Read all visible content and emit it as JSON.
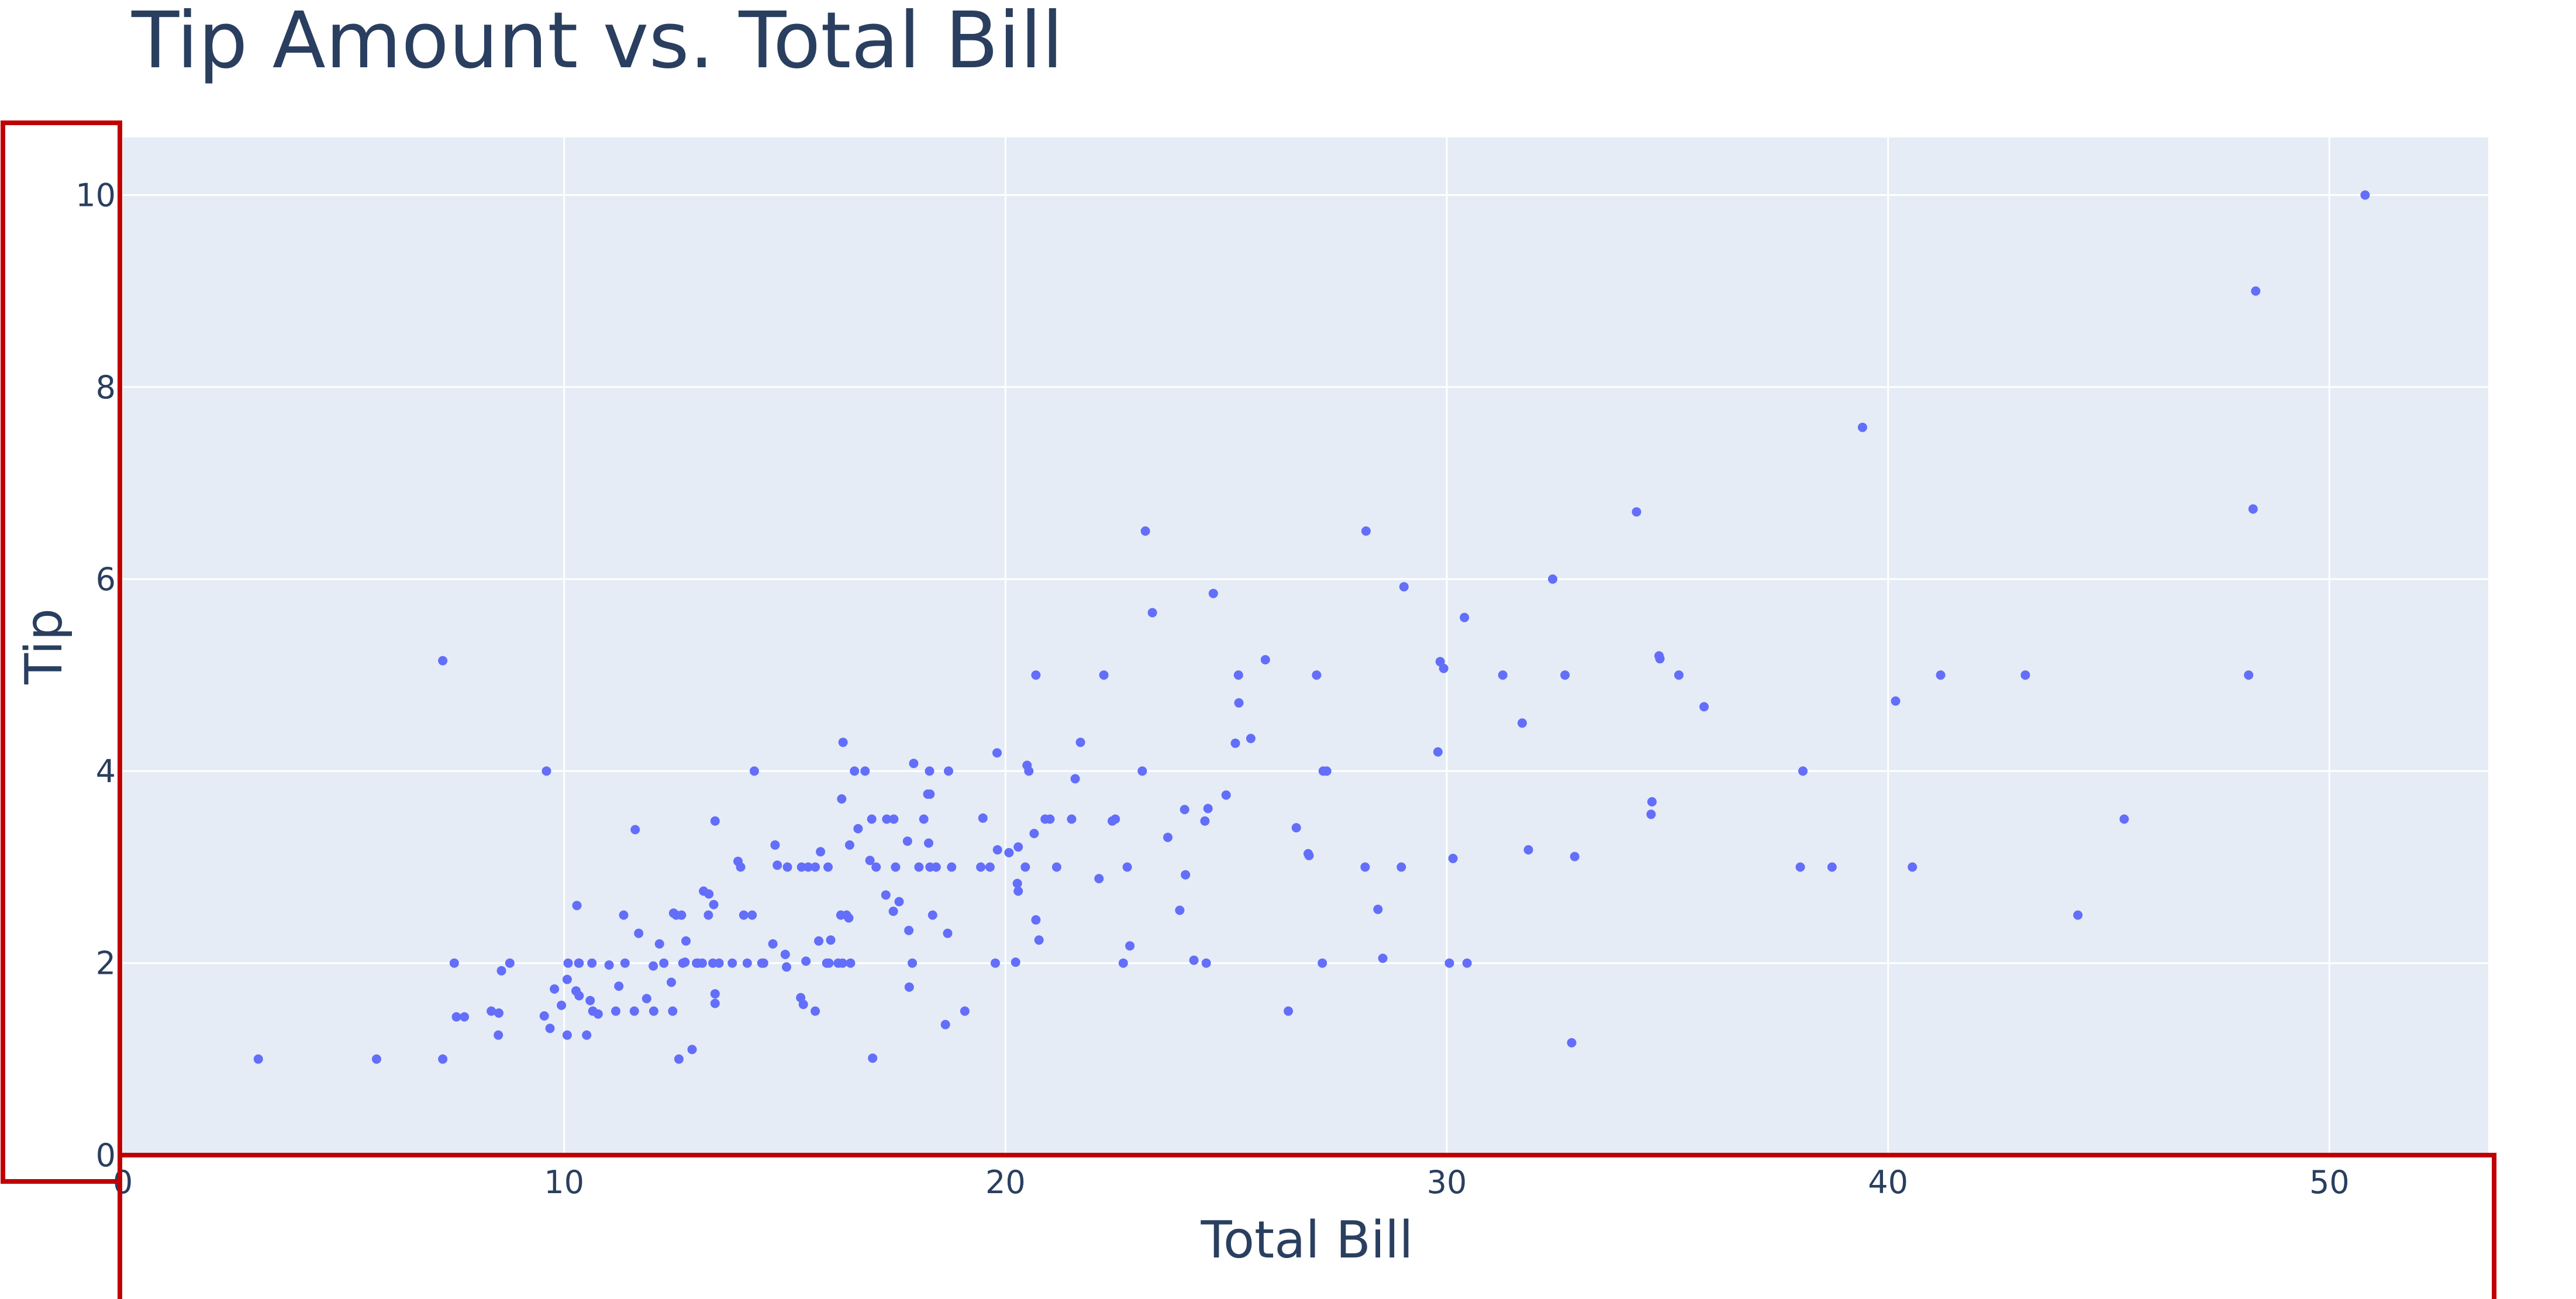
{
  "chart_data": {
    "type": "scatter",
    "title": "Tip Amount vs. Total Bill",
    "xlabel": "Total Bill",
    "ylabel": "Tip",
    "xlim": [
      0,
      53.6
    ],
    "ylim": [
      0,
      10.6
    ],
    "xticks": [
      0,
      10,
      20,
      30,
      40,
      50
    ],
    "yticks": [
      0,
      2,
      4,
      6,
      8,
      10
    ],
    "grid": true,
    "background": "#e5ecf6",
    "marker_color": "#636efa",
    "highlight_color": "#c00000",
    "points": [
      [
        3.07,
        1.0
      ],
      [
        5.75,
        1.0
      ],
      [
        7.25,
        1.0
      ],
      [
        7.25,
        5.15
      ],
      [
        7.51,
        2.0
      ],
      [
        7.56,
        1.44
      ],
      [
        7.74,
        1.44
      ],
      [
        8.35,
        1.5
      ],
      [
        8.51,
        1.25
      ],
      [
        8.52,
        1.48
      ],
      [
        8.58,
        1.92
      ],
      [
        8.77,
        2.0
      ],
      [
        9.55,
        1.45
      ],
      [
        9.6,
        4.0
      ],
      [
        9.68,
        1.32
      ],
      [
        9.78,
        1.73
      ],
      [
        9.94,
        1.56
      ],
      [
        10.07,
        1.83
      ],
      [
        10.07,
        1.25
      ],
      [
        10.09,
        2.0
      ],
      [
        10.27,
        1.71
      ],
      [
        10.29,
        2.6
      ],
      [
        10.33,
        2.0
      ],
      [
        10.34,
        1.66
      ],
      [
        10.34,
        2.0
      ],
      [
        10.51,
        1.25
      ],
      [
        10.59,
        1.61
      ],
      [
        10.63,
        2.0
      ],
      [
        10.65,
        1.5
      ],
      [
        10.77,
        1.47
      ],
      [
        11.02,
        1.98
      ],
      [
        11.17,
        1.5
      ],
      [
        11.24,
        1.76
      ],
      [
        11.35,
        2.5
      ],
      [
        11.38,
        2.0
      ],
      [
        11.59,
        1.5
      ],
      [
        11.61,
        3.39
      ],
      [
        11.69,
        2.31
      ],
      [
        11.87,
        1.63
      ],
      [
        12.02,
        1.97
      ],
      [
        12.03,
        1.5
      ],
      [
        12.16,
        2.2
      ],
      [
        12.26,
        2.0
      ],
      [
        12.43,
        1.8
      ],
      [
        12.46,
        1.5
      ],
      [
        12.48,
        2.52
      ],
      [
        12.54,
        2.5
      ],
      [
        12.6,
        1.0
      ],
      [
        12.66,
        2.5
      ],
      [
        12.69,
        2.0
      ],
      [
        12.74,
        2.01
      ],
      [
        12.76,
        2.23
      ],
      [
        12.9,
        1.1
      ],
      [
        13.0,
        2.0
      ],
      [
        13.03,
        2.0
      ],
      [
        13.13,
        2.0
      ],
      [
        13.16,
        2.75
      ],
      [
        13.27,
        2.5
      ],
      [
        13.28,
        2.72
      ],
      [
        13.37,
        2.0
      ],
      [
        13.39,
        2.61
      ],
      [
        13.42,
        3.48
      ],
      [
        13.42,
        1.58
      ],
      [
        13.42,
        1.68
      ],
      [
        13.51,
        2.0
      ],
      [
        13.81,
        2.0
      ],
      [
        13.94,
        3.06
      ],
      [
        14.0,
        3.0
      ],
      [
        14.07,
        2.5
      ],
      [
        14.15,
        2.0
      ],
      [
        14.26,
        2.5
      ],
      [
        14.31,
        4.0
      ],
      [
        14.48,
        2.0
      ],
      [
        14.52,
        2.0
      ],
      [
        14.73,
        2.2
      ],
      [
        14.78,
        3.23
      ],
      [
        14.83,
        3.02
      ],
      [
        15.01,
        2.09
      ],
      [
        15.04,
        1.96
      ],
      [
        15.06,
        3.0
      ],
      [
        15.36,
        1.64
      ],
      [
        15.38,
        3.0
      ],
      [
        15.42,
        1.57
      ],
      [
        15.48,
        2.02
      ],
      [
        15.53,
        3.0
      ],
      [
        15.69,
        3.0
      ],
      [
        15.69,
        1.5
      ],
      [
        15.77,
        2.23
      ],
      [
        15.81,
        3.16
      ],
      [
        15.95,
        2.0
      ],
      [
        15.98,
        3.0
      ],
      [
        16.0,
        2.0
      ],
      [
        16.04,
        2.24
      ],
      [
        16.21,
        2.0
      ],
      [
        16.27,
        2.5
      ],
      [
        16.29,
        3.71
      ],
      [
        16.31,
        2.0
      ],
      [
        16.32,
        4.3
      ],
      [
        16.4,
        2.5
      ],
      [
        16.45,
        2.47
      ],
      [
        16.47,
        3.23
      ],
      [
        16.49,
        2.0
      ],
      [
        16.58,
        4.0
      ],
      [
        16.66,
        3.4
      ],
      [
        16.82,
        4.0
      ],
      [
        16.93,
        3.07
      ],
      [
        16.97,
        3.5
      ],
      [
        16.99,
        1.01
      ],
      [
        17.07,
        3.0
      ],
      [
        17.29,
        2.71
      ],
      [
        17.31,
        3.5
      ],
      [
        17.46,
        2.54
      ],
      [
        17.47,
        3.5
      ],
      [
        17.51,
        3.0
      ],
      [
        17.59,
        2.64
      ],
      [
        17.78,
        3.27
      ],
      [
        17.81,
        2.34
      ],
      [
        17.82,
        1.75
      ],
      [
        17.89,
        2.0
      ],
      [
        17.92,
        4.08
      ],
      [
        18.04,
        3.0
      ],
      [
        18.15,
        3.5
      ],
      [
        18.24,
        3.76
      ],
      [
        18.26,
        3.25
      ],
      [
        18.28,
        4.0
      ],
      [
        18.29,
        3.76
      ],
      [
        18.29,
        3.0
      ],
      [
        18.35,
        2.5
      ],
      [
        18.43,
        3.0
      ],
      [
        18.64,
        1.36
      ],
      [
        18.69,
        2.31
      ],
      [
        18.71,
        4.0
      ],
      [
        18.78,
        3.0
      ],
      [
        19.08,
        1.5
      ],
      [
        19.44,
        3.0
      ],
      [
        19.49,
        3.51
      ],
      [
        19.65,
        3.0
      ],
      [
        19.77,
        2.0
      ],
      [
        19.81,
        4.19
      ],
      [
        19.82,
        3.18
      ],
      [
        20.08,
        3.15
      ],
      [
        20.23,
        2.01
      ],
      [
        20.27,
        2.83
      ],
      [
        20.29,
        2.75
      ],
      [
        20.29,
        3.21
      ],
      [
        20.45,
        3.0
      ],
      [
        20.49,
        4.06
      ],
      [
        20.53,
        4.0
      ],
      [
        20.65,
        3.35
      ],
      [
        20.69,
        2.45
      ],
      [
        20.69,
        5.0
      ],
      [
        20.76,
        2.24
      ],
      [
        20.9,
        3.5
      ],
      [
        21.01,
        3.5
      ],
      [
        21.16,
        3.0
      ],
      [
        21.5,
        3.5
      ],
      [
        21.58,
        3.92
      ],
      [
        21.7,
        4.3
      ],
      [
        22.12,
        2.88
      ],
      [
        22.23,
        5.0
      ],
      [
        22.42,
        3.48
      ],
      [
        22.49,
        3.5
      ],
      [
        22.67,
        2.0
      ],
      [
        22.76,
        3.0
      ],
      [
        22.82,
        2.18
      ],
      [
        23.1,
        4.0
      ],
      [
        23.17,
        6.5
      ],
      [
        23.33,
        5.65
      ],
      [
        23.68,
        3.31
      ],
      [
        23.95,
        2.55
      ],
      [
        24.06,
        3.6
      ],
      [
        24.08,
        2.92
      ],
      [
        24.27,
        2.03
      ],
      [
        24.52,
        3.48
      ],
      [
        24.55,
        2.0
      ],
      [
        24.59,
        3.61
      ],
      [
        24.71,
        5.85
      ],
      [
        25.0,
        3.75
      ],
      [
        25.21,
        4.29
      ],
      [
        25.28,
        5.0
      ],
      [
        25.29,
        4.71
      ],
      [
        25.56,
        4.34
      ],
      [
        25.89,
        5.16
      ],
      [
        26.41,
        1.5
      ],
      [
        26.59,
        3.41
      ],
      [
        26.86,
        3.14
      ],
      [
        26.88,
        3.12
      ],
      [
        27.05,
        5.0
      ],
      [
        27.18,
        2.0
      ],
      [
        27.2,
        4.0
      ],
      [
        27.28,
        4.0
      ],
      [
        28.15,
        3.0
      ],
      [
        28.17,
        6.5
      ],
      [
        28.44,
        2.56
      ],
      [
        28.55,
        2.05
      ],
      [
        28.97,
        3.0
      ],
      [
        29.03,
        5.92
      ],
      [
        29.8,
        4.2
      ],
      [
        29.85,
        5.14
      ],
      [
        29.93,
        5.07
      ],
      [
        30.06,
        2.0
      ],
      [
        30.14,
        3.09
      ],
      [
        30.4,
        5.6
      ],
      [
        30.46,
        2.0
      ],
      [
        31.27,
        5.0
      ],
      [
        31.71,
        4.5
      ],
      [
        31.85,
        3.18
      ],
      [
        32.4,
        6.0
      ],
      [
        32.68,
        5.0
      ],
      [
        32.83,
        1.17
      ],
      [
        32.9,
        3.11
      ],
      [
        34.3,
        6.7
      ],
      [
        34.63,
        3.55
      ],
      [
        34.65,
        3.68
      ],
      [
        34.81,
        5.2
      ],
      [
        34.83,
        5.17
      ],
      [
        35.26,
        5.0
      ],
      [
        35.83,
        4.67
      ],
      [
        38.01,
        3.0
      ],
      [
        38.07,
        4.0
      ],
      [
        38.73,
        3.0
      ],
      [
        39.42,
        7.58
      ],
      [
        40.17,
        4.73
      ],
      [
        40.55,
        3.0
      ],
      [
        41.19,
        5.0
      ],
      [
        43.11,
        5.0
      ],
      [
        44.3,
        2.5
      ],
      [
        45.35,
        3.5
      ],
      [
        48.17,
        5.0
      ],
      [
        48.27,
        6.73
      ],
      [
        48.33,
        9.0
      ],
      [
        50.81,
        10.0
      ]
    ]
  }
}
